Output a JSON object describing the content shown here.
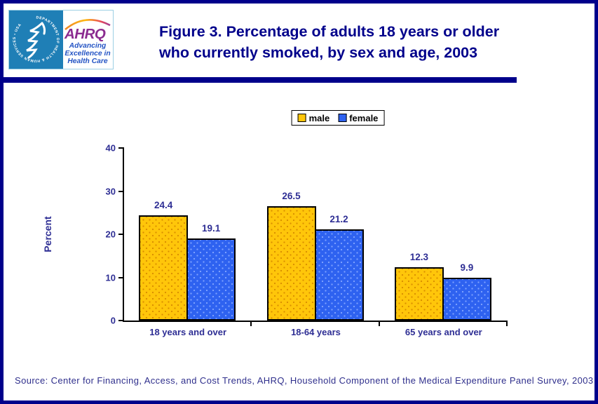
{
  "header": {
    "logo": {
      "seal_text": "DEPARTMENT OF HEALTH & HUMAN SERVICES • USA",
      "wordmark": "AHRQ",
      "tagline_lines": [
        "Advancing",
        "Excellence in",
        "Health Care"
      ]
    },
    "title_lines": [
      "Figure 3. Percentage of adults 18 years or older",
      "who currently smoked, by sex and age, 2003"
    ]
  },
  "chart_data": {
    "type": "bar",
    "title": "Figure 3. Percentage of adults 18 years or older who currently smoked, by sex and age, 2003",
    "categories": [
      "18 years and over",
      "18-64 years",
      "65 years and over"
    ],
    "series": [
      {
        "name": "male",
        "fill": "#FFC60A",
        "speckle": "#D98E00",
        "values": [
          24.4,
          26.5,
          12.3
        ]
      },
      {
        "name": "female",
        "fill": "#2E62F0",
        "speckle": "#7FA2FF",
        "values": [
          19.1,
          21.2,
          9.9
        ]
      }
    ],
    "xlabel": "",
    "ylabel": "Percent",
    "ylim": [
      0,
      40
    ],
    "yticks": [
      0,
      10,
      20,
      30,
      40
    ],
    "grid": false,
    "legend_position": "top-center",
    "bar_border_color": "#000000",
    "axis_color": "#000000",
    "label_color": "#2E2E94"
  },
  "colors": {
    "frame_navy": "#00008B",
    "title_navy": "#00008B",
    "hhs_blue": "#1F7FB6",
    "ahrq_purple": "#8B2C90",
    "tagline_blue": "#2353C4"
  },
  "source": "Source: Center for Financing, Access, and Cost Trends, AHRQ, Household Component of the Medical Expenditure Panel Survey, 2003"
}
